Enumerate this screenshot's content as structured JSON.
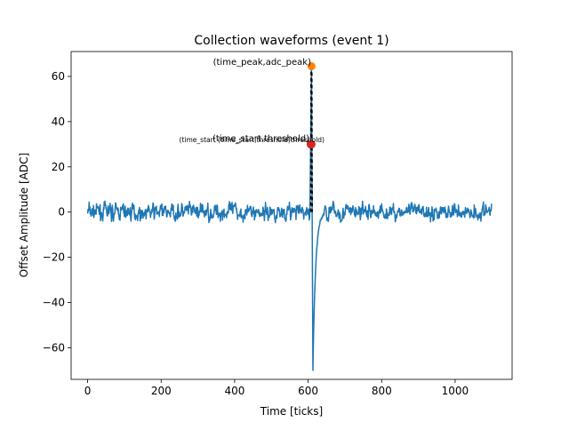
{
  "chart_data": {
    "type": "line",
    "title": "Collection waveforms (event 1)",
    "xlabel": "Time [ticks]",
    "ylabel": "Offset Amplitude [ADC]",
    "xlim": [
      -45,
      1155
    ],
    "ylim": [
      -74,
      71
    ],
    "xticks": [
      0,
      200,
      400,
      600,
      800,
      1000
    ],
    "yticks": [
      -60,
      -40,
      -20,
      0,
      20,
      40,
      60
    ],
    "xtick_labels": [
      "0",
      "200",
      "400",
      "600",
      "800",
      "1000"
    ],
    "ytick_labels": [
      "−60",
      "−40",
      "−20",
      "0",
      "20",
      "40",
      "60"
    ],
    "grid": false,
    "colors": {
      "waveform": "#1f77b4",
      "peak": "#ff7f0e",
      "start_marker": "#d62728",
      "guide": "#000000"
    },
    "series": [
      {
        "noise_seed": 7,
        "noise_amplitude": 2.2,
        "x_range": [
          0,
          1099
        ],
        "pulse": {
          "start_tick": 606,
          "peak_tick": 609,
          "peak_value": 64,
          "trough_tick": 613,
          "trough_value": -70,
          "recovery_ticks": 30
        }
      }
    ],
    "markers": [
      {
        "id": "peak",
        "x": 609,
        "y": 64.5
      },
      {
        "id": "start",
        "x": 608,
        "y": 30
      }
    ],
    "annotations": [
      {
        "id": "peak-label",
        "text": "(time_peak,adc_peak)"
      },
      {
        "id": "start-label",
        "text": "(time_start,threshold)"
      },
      {
        "id": "start-label-small",
        "text": "(time_start (time_start,threshold)threshold)"
      }
    ]
  }
}
